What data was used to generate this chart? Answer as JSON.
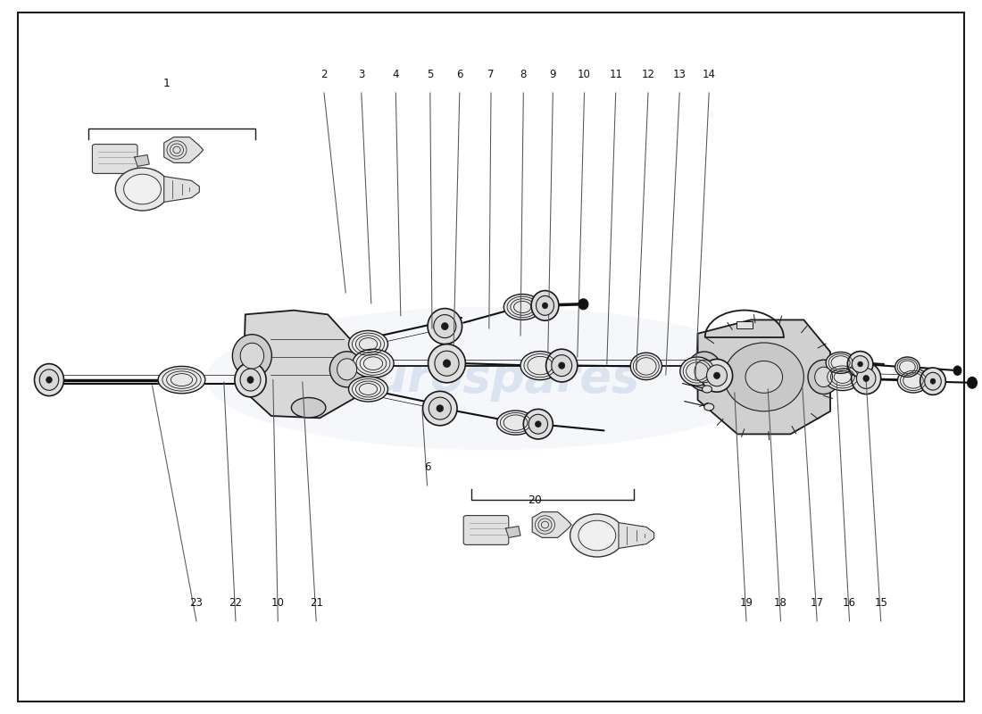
{
  "background_color": "#ffffff",
  "border_color": "#000000",
  "fig_width": 11.0,
  "fig_height": 8.0,
  "dpi": 100,
  "text_color": "#111111",
  "line_color": "#1a1a1a",
  "watermark_text": "eurospares",
  "watermark_color": "#c8d4e8",
  "top_callouts": [
    [
      2,
      0.33,
      0.87,
      0.352,
      0.59
    ],
    [
      3,
      0.368,
      0.87,
      0.378,
      0.575
    ],
    [
      4,
      0.403,
      0.87,
      0.408,
      0.558
    ],
    [
      5,
      0.438,
      0.87,
      0.44,
      0.54
    ],
    [
      6,
      0.468,
      0.87,
      0.462,
      0.518
    ],
    [
      7,
      0.5,
      0.87,
      0.498,
      0.54
    ],
    [
      8,
      0.533,
      0.87,
      0.53,
      0.53
    ],
    [
      9,
      0.563,
      0.87,
      0.558,
      0.505
    ],
    [
      10,
      0.595,
      0.87,
      0.588,
      0.5
    ],
    [
      11,
      0.627,
      0.87,
      0.618,
      0.49
    ],
    [
      12,
      0.66,
      0.87,
      0.648,
      0.482
    ],
    [
      13,
      0.692,
      0.87,
      0.678,
      0.475
    ],
    [
      14,
      0.722,
      0.87,
      0.708,
      0.468
    ]
  ],
  "bottom_callouts": [
    [
      23,
      0.2,
      0.13,
      0.155,
      0.46
    ],
    [
      22,
      0.24,
      0.13,
      0.228,
      0.465
    ],
    [
      10,
      0.283,
      0.13,
      0.278,
      0.468
    ],
    [
      21,
      0.322,
      0.13,
      0.308,
      0.465
    ],
    [
      6,
      0.435,
      0.32,
      0.43,
      0.425
    ],
    [
      19,
      0.76,
      0.13,
      0.748,
      0.45
    ],
    [
      18,
      0.795,
      0.13,
      0.782,
      0.455
    ],
    [
      17,
      0.832,
      0.13,
      0.817,
      0.46
    ],
    [
      16,
      0.865,
      0.13,
      0.852,
      0.464
    ],
    [
      15,
      0.897,
      0.13,
      0.882,
      0.466
    ]
  ],
  "number1": [
    0.17,
    0.855,
    0.09,
    0.82,
    0.26,
    0.82
  ],
  "number20": [
    0.545,
    0.33,
    0.48,
    0.3,
    0.645,
    0.3
  ]
}
